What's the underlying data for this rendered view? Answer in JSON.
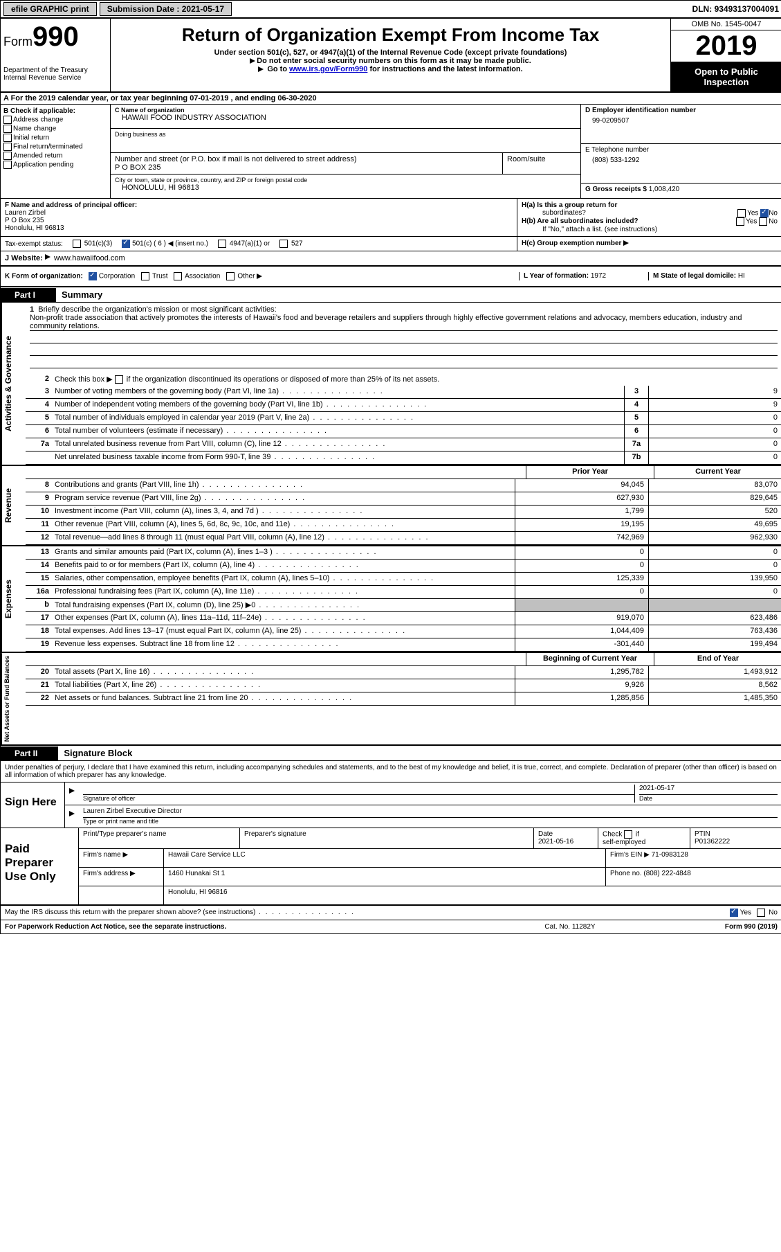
{
  "topbar": {
    "efile": "efile GRAPHIC print",
    "submission_label": "Submission Date :",
    "submission_date": "2021-05-17",
    "dln_label": "DLN:",
    "dln": "93493137004091"
  },
  "header": {
    "form_prefix": "Form",
    "form_number": "990",
    "title": "Return of Organization Exempt From Income Tax",
    "subtitle": "Under section 501(c), 527, or 4947(a)(1) of the Internal Revenue Code (except private foundations)",
    "note1": "Do not enter social security numbers on this form as it may be made public.",
    "note2_prefix": "Go to ",
    "note2_link": "www.irs.gov/Form990",
    "note2_suffix": " for instructions and the latest information.",
    "dept1": "Department of the Treasury",
    "dept2": "Internal Revenue Service",
    "omb": "OMB No. 1545-0047",
    "year": "2019",
    "open": "Open to Public Inspection"
  },
  "rowA": "A For the 2019 calendar year, or tax year beginning 07-01-2019   , and ending 06-30-2020",
  "boxB": {
    "title": "B Check if applicable:",
    "items": [
      "Address change",
      "Name change",
      "Initial return",
      "Final return/terminated",
      "Amended return",
      "Application pending"
    ]
  },
  "boxC": {
    "name_label": "C Name of organization",
    "name": "HAWAII FOOD INDUSTRY ASSOCIATION",
    "dba_label": "Doing business as",
    "dba": "",
    "addr_label": "Number and street (or P.O. box if mail is not delivered to street address)",
    "room_label": "Room/suite",
    "addr": "P O BOX 235",
    "city_label": "City or town, state or province, country, and ZIP or foreign postal code",
    "city": "HONOLULU, HI  96813"
  },
  "boxD": {
    "label": "D Employer identification number",
    "value": "99-0209507"
  },
  "boxE": {
    "label": "E Telephone number",
    "value": "(808) 533-1292"
  },
  "boxG": {
    "label": "G Gross receipts $",
    "value": "1,008,420"
  },
  "boxF": {
    "label": "F  Name and address of principal officer:",
    "name": "Lauren Zirbel",
    "addr1": "P O Box 235",
    "addr2": "Honolulu, HI  96813"
  },
  "boxH": {
    "ha_label": "H(a)  Is this a group return for",
    "ha_sub": "subordinates?",
    "hb_label": "H(b)  Are all subordinates included?",
    "hb_note": "If \"No,\" attach a list. (see instructions)",
    "hc_label": "H(c)  Group exemption number",
    "yes": "Yes",
    "no": "No"
  },
  "taxExempt": {
    "label": "Tax-exempt status:",
    "c3": "501(c)(3)",
    "c": "501(c) ( 6 )",
    "insert": "(insert no.)",
    "a1": "4947(a)(1) or",
    "s527": "527"
  },
  "boxJ": {
    "label": "J   Website:",
    "value": "www.hawaiifood.com"
  },
  "boxK": {
    "label": "K Form of organization:",
    "corp": "Corporation",
    "trust": "Trust",
    "assoc": "Association",
    "other": "Other"
  },
  "boxL": {
    "label": "L Year of formation:",
    "value": "1972"
  },
  "boxM": {
    "label": "M State of legal domicile:",
    "value": "HI"
  },
  "parts": {
    "part1": "Part I",
    "part1_title": "Summary",
    "part2": "Part II",
    "part2_title": "Signature Block"
  },
  "summary": {
    "line1_label": "1",
    "line1_text": "Briefly describe the organization's mission or most significant activities:",
    "mission": "Non-profit trade association that actively promotes the interests of Hawaii's food and beverage retailers and suppliers through highly effective government relations and advocacy, members education, industry and community relations.",
    "line2": "Check this box ▶      if the organization discontinued its operations or disposed of more than 25% of its net assets.",
    "sidelabel_gov": "Activities & Governance",
    "sidelabel_rev": "Revenue",
    "sidelabel_exp": "Expenses",
    "sidelabel_net": "Net Assets or Fund Balances",
    "rows_gov": [
      {
        "n": "3",
        "d": "Number of voting members of the governing body (Part VI, line 1a)",
        "box": "3",
        "v": "9"
      },
      {
        "n": "4",
        "d": "Number of independent voting members of the governing body (Part VI, line 1b)",
        "box": "4",
        "v": "9"
      },
      {
        "n": "5",
        "d": "Total number of individuals employed in calendar year 2019 (Part V, line 2a)",
        "box": "5",
        "v": "0"
      },
      {
        "n": "6",
        "d": "Total number of volunteers (estimate if necessary)",
        "box": "6",
        "v": "0"
      },
      {
        "n": "7a",
        "d": "Total unrelated business revenue from Part VIII, column (C), line 12",
        "box": "7a",
        "v": "0"
      },
      {
        "n": "",
        "d": "Net unrelated business taxable income from Form 990-T, line 39",
        "box": "7b",
        "v": "0"
      }
    ],
    "header_prior": "Prior Year",
    "header_current": "Current Year",
    "rows_rev": [
      {
        "n": "8",
        "d": "Contributions and grants (Part VIII, line 1h)",
        "py": "94,045",
        "cy": "83,070"
      },
      {
        "n": "9",
        "d": "Program service revenue (Part VIII, line 2g)",
        "py": "627,930",
        "cy": "829,645"
      },
      {
        "n": "10",
        "d": "Investment income (Part VIII, column (A), lines 3, 4, and 7d )",
        "py": "1,799",
        "cy": "520"
      },
      {
        "n": "11",
        "d": "Other revenue (Part VIII, column (A), lines 5, 6d, 8c, 9c, 10c, and 11e)",
        "py": "19,195",
        "cy": "49,695"
      },
      {
        "n": "12",
        "d": "Total revenue—add lines 8 through 11 (must equal Part VIII, column (A), line 12)",
        "py": "742,969",
        "cy": "962,930"
      }
    ],
    "rows_exp": [
      {
        "n": "13",
        "d": "Grants and similar amounts paid (Part IX, column (A), lines 1–3 )",
        "py": "0",
        "cy": "0"
      },
      {
        "n": "14",
        "d": "Benefits paid to or for members (Part IX, column (A), line 4)",
        "py": "0",
        "cy": "0"
      },
      {
        "n": "15",
        "d": "Salaries, other compensation, employee benefits (Part IX, column (A), lines 5–10)",
        "py": "125,339",
        "cy": "139,950"
      },
      {
        "n": "16a",
        "d": "Professional fundraising fees (Part IX, column (A), line 11e)",
        "py": "0",
        "cy": "0"
      },
      {
        "n": "b",
        "d": "Total fundraising expenses (Part IX, column (D), line 25) ▶0",
        "py": "",
        "cy": "",
        "grey": true
      },
      {
        "n": "17",
        "d": "Other expenses (Part IX, column (A), lines 11a–11d, 11f–24e)",
        "py": "919,070",
        "cy": "623,486"
      },
      {
        "n": "18",
        "d": "Total expenses. Add lines 13–17 (must equal Part IX, column (A), line 25)",
        "py": "1,044,409",
        "cy": "763,436"
      },
      {
        "n": "19",
        "d": "Revenue less expenses. Subtract line 18 from line 12",
        "py": "-301,440",
        "cy": "199,494"
      }
    ],
    "header_begin": "Beginning of Current Year",
    "header_end": "End of Year",
    "rows_net": [
      {
        "n": "20",
        "d": "Total assets (Part X, line 16)",
        "py": "1,295,782",
        "cy": "1,493,912"
      },
      {
        "n": "21",
        "d": "Total liabilities (Part X, line 26)",
        "py": "9,926",
        "cy": "8,562"
      },
      {
        "n": "22",
        "d": "Net assets or fund balances. Subtract line 21 from line 20",
        "py": "1,285,856",
        "cy": "1,485,350"
      }
    ]
  },
  "signature": {
    "decl": "Under penalties of perjury, I declare that I have examined this return, including accompanying schedules and statements, and to the best of my knowledge and belief, it is true, correct, and complete. Declaration of preparer (other than officer) is based on all information of which preparer has any knowledge.",
    "sign_here": "Sign Here",
    "sig_officer": "Signature of officer",
    "date_label": "Date",
    "sig_date": "2021-05-17",
    "officer_name": "Lauren Zirbel  Executive Director",
    "type_name": "Type or print name and title"
  },
  "paid": {
    "title": "Paid Preparer Use Only",
    "print_name": "Print/Type preparer's name",
    "prep_sig": "Preparer's signature",
    "date_label": "Date",
    "date": "2021-05-16",
    "check_label": "Check        if self-employed",
    "ptin_label": "PTIN",
    "ptin": "P01362222",
    "firm_name_label": "Firm's name    ▶",
    "firm_name": "Hawaii Care Service LLC",
    "firm_ein_label": "Firm's EIN ▶",
    "firm_ein": "71-0983128",
    "firm_addr_label": "Firm's address ▶",
    "firm_addr1": "1460 Hunakai St 1",
    "firm_addr2": "Honolulu, HI  96816",
    "phone_label": "Phone no.",
    "phone": "(808) 222-4848"
  },
  "may": {
    "text": "May the IRS discuss this return with the preparer shown above? (see instructions)",
    "yes": "Yes",
    "no": "No"
  },
  "footer": {
    "left": "For Paperwork Reduction Act Notice, see the separate instructions.",
    "center": "Cat. No. 11282Y",
    "right": "Form 990 (2019)"
  }
}
